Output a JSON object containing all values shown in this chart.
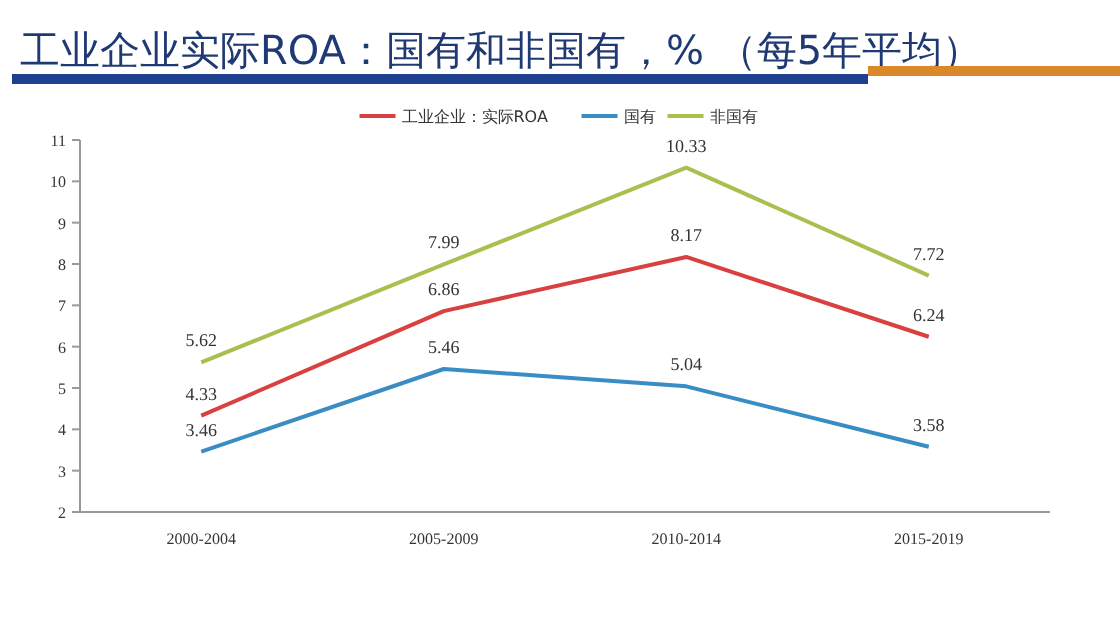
{
  "chart_data": {
    "type": "line",
    "title": "工业企业实际ROA：国有和非国有，%  （每5年平均）",
    "categories": [
      "2000-2004",
      "2005-2009",
      "2010-2014",
      "2015-2019"
    ],
    "series": [
      {
        "name": "工业企业：实际ROA",
        "color": "#d94040",
        "values": [
          4.33,
          6.86,
          8.17,
          6.24
        ]
      },
      {
        "name": "国有",
        "color": "#3a8cc4",
        "values": [
          3.46,
          5.46,
          5.04,
          3.58
        ]
      },
      {
        "name": "非国有",
        "color": "#a8c050",
        "values": [
          5.62,
          7.99,
          10.33,
          7.72
        ]
      }
    ],
    "ylim": [
      2,
      11
    ],
    "yticks": [
      2,
      3,
      4,
      5,
      6,
      7,
      8,
      9,
      10,
      11
    ],
    "grid": false,
    "legend": "top",
    "data_labels": true,
    "marker": "none",
    "line_style": "solid"
  }
}
